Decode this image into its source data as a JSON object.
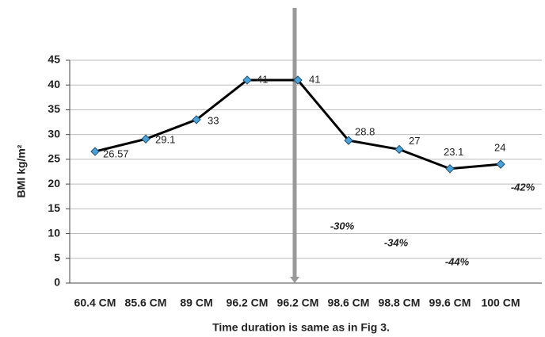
{
  "chart_data": {
    "type": "line",
    "y_label": "BMI kg/m²",
    "x_label": "Time duration is  same as in Fig 3.",
    "categories": [
      "60.4 CM",
      "85.6 CM",
      "89 CM",
      "96.2 CM",
      "96.2 CM",
      "98.6 CM",
      "98.8 CM",
      "99.6 CM",
      "100 CM"
    ],
    "values": [
      26.57,
      29.1,
      33,
      41,
      41,
      28.8,
      27,
      23.1,
      24
    ],
    "annotations": [
      "-30%",
      "-34%",
      "-44%",
      "-42%"
    ],
    "color": "#000000",
    "marker_color": "#4aa3d8",
    "ylim": [
      0,
      45
    ],
    "yticks": [
      0,
      5,
      10,
      15,
      20,
      25,
      30,
      35,
      40,
      45
    ],
    "grid": true
  }
}
